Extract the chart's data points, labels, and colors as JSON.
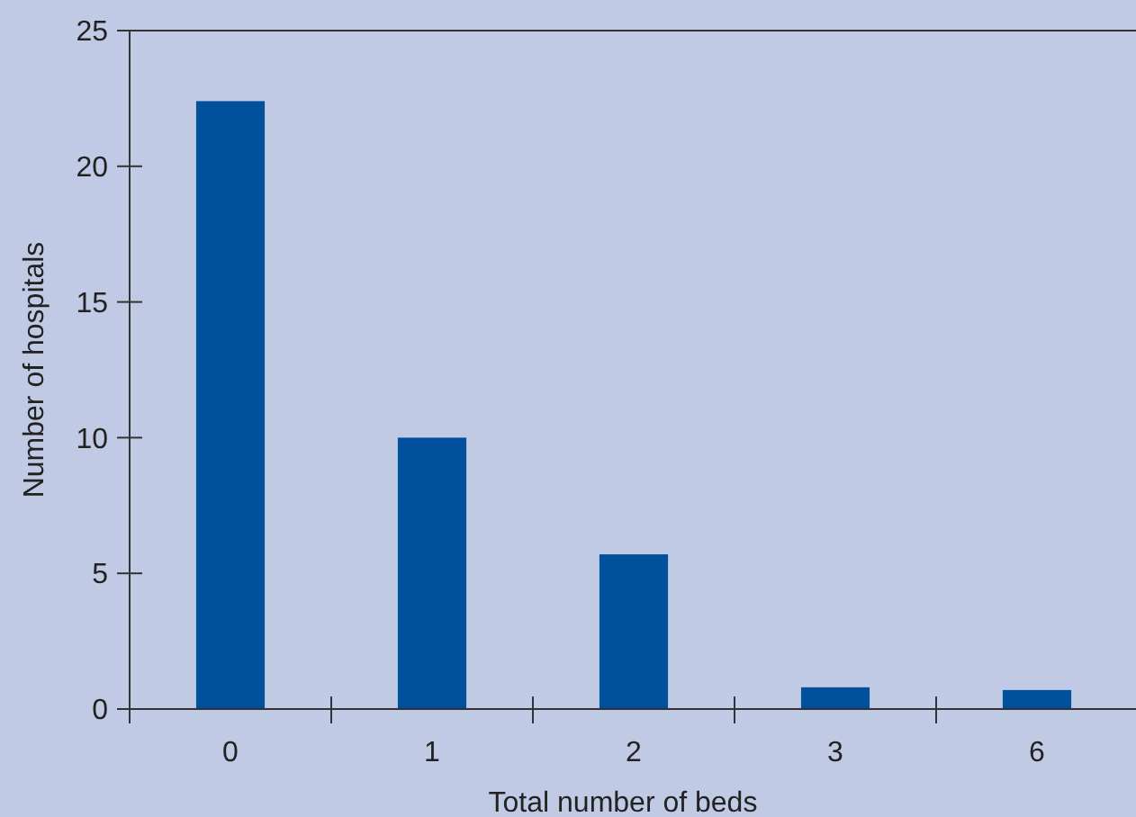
{
  "chart_data": {
    "type": "bar",
    "xlabel": "Total number of beds",
    "ylabel": "Number of hospitals",
    "categories": [
      "0",
      "1",
      "2",
      "3",
      "6"
    ],
    "values": [
      22.4,
      10,
      5.7,
      0.8,
      0.7
    ],
    "color": "#00509b",
    "ylim": [
      0,
      25
    ],
    "yticks": [
      0,
      5,
      10,
      15,
      20,
      25
    ],
    "grid": false
  }
}
